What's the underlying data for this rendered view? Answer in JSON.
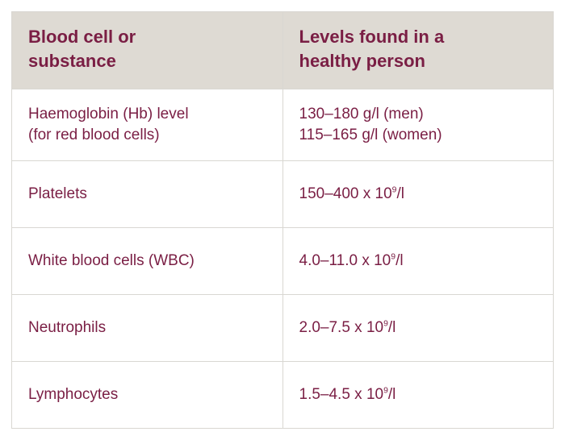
{
  "table": {
    "header_bg": "#dedad3",
    "border_color": "#d9d7d2",
    "text_color": "#7a1e44",
    "header_fontsize": 22,
    "cell_fontsize": 19,
    "columns": [
      "Blood cell or substance",
      "Levels found in a healthy person"
    ],
    "rows": [
      {
        "c0_lines": [
          "Haemoglobin (Hb) level",
          "(for red blood cells)"
        ],
        "c1_lines": [
          "130–180 g/l (men)",
          "115–165 g/l (women)"
        ]
      },
      {
        "c0_lines": [
          "Platelets"
        ],
        "c1_lines": [
          "150–400 x 10⁹/l"
        ]
      },
      {
        "c0_lines": [
          "White blood cells (WBC)"
        ],
        "c1_lines": [
          "4.0–11.0 x 10⁹/l"
        ]
      },
      {
        "c0_lines": [
          "Neutrophils"
        ],
        "c1_lines": [
          "2.0–7.5 x 10⁹/l"
        ]
      },
      {
        "c0_lines": [
          "Lymphocytes"
        ],
        "c1_lines": [
          "1.5–4.5 x 10⁹/l"
        ]
      }
    ]
  }
}
